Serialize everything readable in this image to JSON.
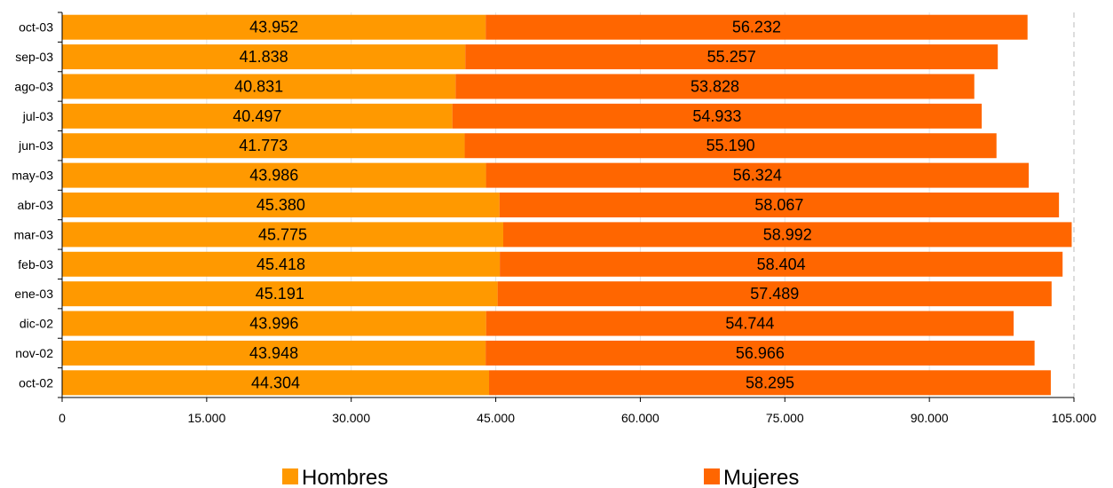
{
  "chart_data": {
    "type": "bar",
    "orientation": "horizontal",
    "stacked": true,
    "categories": [
      "oct-03",
      "sep-03",
      "ago-03",
      "jul-03",
      "jun-03",
      "may-03",
      "abr-03",
      "mar-03",
      "feb-03",
      "ene-03",
      "dic-02",
      "nov-02",
      "oct-02"
    ],
    "series": [
      {
        "name": "Hombres",
        "color": "#FF9900",
        "values": [
          43952,
          41838,
          40831,
          40497,
          41773,
          43986,
          45380,
          45775,
          45418,
          45191,
          43996,
          43948,
          44304
        ],
        "labels": [
          "43.952",
          "41.838",
          "40.831",
          "40.497",
          "41.773",
          "43.986",
          "45.380",
          "45.775",
          "45.418",
          "45.191",
          "43.996",
          "43.948",
          "44.304"
        ]
      },
      {
        "name": "Mujeres",
        "color": "#FF6600",
        "values": [
          56232,
          55257,
          53828,
          54933,
          55190,
          56324,
          58067,
          58992,
          58404,
          57489,
          54744,
          56966,
          58295
        ],
        "labels": [
          "56.232",
          "55.257",
          "53.828",
          "54.933",
          "55.190",
          "56.324",
          "58.067",
          "58.992",
          "58.404",
          "57.489",
          "54.744",
          "56.966",
          "58.295"
        ]
      }
    ],
    "xlim": [
      0,
      105000
    ],
    "xticks": [
      0,
      15000,
      30000,
      45000,
      60000,
      75000,
      90000,
      105000
    ],
    "xtick_labels": [
      "0",
      "15.000",
      "30.000",
      "45.000",
      "60.000",
      "75.000",
      "90.000",
      "105.000"
    ],
    "grid": true,
    "legend": "bottom"
  }
}
